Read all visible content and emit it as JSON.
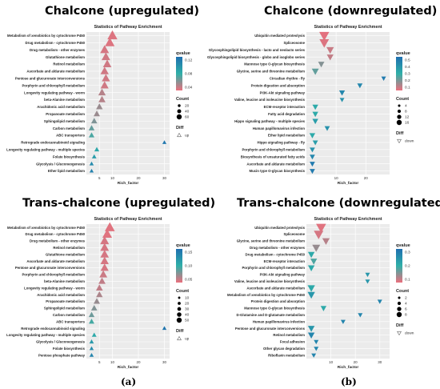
{
  "figure": {
    "caption_a": "(a)",
    "caption_b": "(b)"
  },
  "colors": {
    "high_q": "#1f6fb0",
    "mid_q": "#2fb0a8",
    "low_q": "#ea6f7d"
  },
  "chart_data": [
    {
      "type": "scatter",
      "heading": "Chalcone (upregulated)",
      "title": "Statistics of Pathway Enrichment",
      "xlabel": "Rich_factor",
      "xlim": [
        0,
        32
      ],
      "xticks": [
        5,
        10,
        20,
        30
      ],
      "legend_qvalue": {
        "title": "qvalue",
        "ticks": [
          "0.12",
          "0.08",
          "0.04"
        ],
        "range": [
          0.0,
          0.14
        ]
      },
      "legend_count": {
        "title": "Count",
        "entries": [
          "20",
          "40",
          "60"
        ]
      },
      "legend_diff": {
        "title": "Diff",
        "entries": [
          "up"
        ]
      },
      "categories": [
        "Metabolism of xenobiotics by cytochrome P450",
        "Drug metabolism - cytochrome P450",
        "Drug metabolism - other enzymes",
        "Glutathione metabolism",
        "Retinol metabolism",
        "Ascorbate and aldarate metabolism",
        "Pentose and glucuronate interconversions",
        "Porphyrin and chlorophyll metabolism",
        "Longevity regulating pathway - worm",
        "beta-Alanine metabolism",
        "Arachidonic acid metabolism",
        "Propanoate metabolism",
        "Sphingolipid metabolism",
        "Carbon metabolism",
        "ABC transporters",
        "Retrograde endocannabinoid signaling",
        "Longevity regulating pathway - multiple species",
        "Folate biosynthesis",
        "Glycolysis / Gluconeogenesis",
        "Ether lipid metabolism"
      ],
      "x": [
        10,
        9,
        7,
        7.5,
        8,
        7,
        7.5,
        7,
        6,
        6,
        5,
        4,
        3,
        2,
        2,
        30,
        4,
        3,
        2,
        2
      ],
      "count": [
        62,
        55,
        45,
        42,
        40,
        38,
        36,
        35,
        28,
        24,
        20,
        18,
        16,
        14,
        12,
        4,
        8,
        6,
        5,
        4
      ],
      "qvalue": [
        0.005,
        0.005,
        0.008,
        0.01,
        0.01,
        0.01,
        0.01,
        0.01,
        0.02,
        0.02,
        0.03,
        0.03,
        0.04,
        0.05,
        0.06,
        0.13,
        0.08,
        0.09,
        0.11,
        0.12
      ]
    },
    {
      "type": "scatter",
      "heading": "Chalcone (downregulated)",
      "title": "Statistics of Pathway Enrichment",
      "xlabel": "Rich_factor",
      "xlim": [
        0,
        28
      ],
      "xticks": [
        10,
        20
      ],
      "legend_qvalue": {
        "title": "qvalue",
        "ticks": [
          "0.5",
          "0.4",
          "0.3",
          "0.2",
          "0.1"
        ],
        "range": [
          0.0,
          0.55
        ]
      },
      "legend_count": {
        "title": "Count",
        "entries": [
          "4",
          "8",
          "12",
          "16"
        ]
      },
      "legend_diff": {
        "title": "Diff",
        "entries": [
          "down"
        ]
      },
      "categories": [
        "Ubiquitin mediated proteolysis",
        "Spliceosome",
        "Glycosphingolipid biosynthesis - lacto and neolacto series",
        "Glycosphingolipid biosynthesis - globo and isoglobo series",
        "Mannose type O-glycan biosynthesis",
        "Glycine, serine and threonine metabolism",
        "Circadian rhythm - fly",
        "Protein digestion and absorption",
        "PI3K-Akt signaling pathway",
        "Valine, leucine and isoleucine biosynthesis",
        "ECM-receptor interaction",
        "Fatty acid degradation",
        "Hippo signaling pathway - multiple species",
        "Human papillomavirus infection",
        "Ether lipid metabolism",
        "Hippo signaling pathway - fly",
        "Porphyrin and chlorophyll metabolism",
        "Biosynthesis of unsaturated fatty acids",
        "Ascorbate and aldarate metabolism",
        "Mucin type O-glycan biosynthesis"
      ],
      "x": [
        6,
        6,
        8,
        8,
        5,
        3,
        26,
        18,
        12,
        12,
        3,
        3,
        3,
        7,
        2,
        3,
        2,
        2,
        2,
        2
      ],
      "count": [
        18,
        16,
        8,
        6,
        5,
        7,
        2,
        3,
        4,
        2,
        4,
        4,
        4,
        3,
        4,
        3,
        3,
        3,
        3,
        3
      ],
      "qvalue": [
        0.01,
        0.02,
        0.05,
        0.06,
        0.15,
        0.2,
        0.5,
        0.45,
        0.45,
        0.4,
        0.3,
        0.3,
        0.35,
        0.4,
        0.3,
        0.35,
        0.4,
        0.45,
        0.5,
        0.5
      ]
    },
    {
      "type": "scatter",
      "heading": "Trans-chalcone (upregulated)",
      "title": "Statistics of Pathway Enrichment",
      "xlabel": "Rich_factor",
      "xlim": [
        0,
        32
      ],
      "xticks": [
        5,
        10,
        20,
        30
      ],
      "legend_qvalue": {
        "title": "qvalue",
        "ticks": [
          "0.15",
          "0.10",
          "0.05"
        ],
        "range": [
          0.0,
          0.18
        ]
      },
      "legend_count": {
        "title": "Count",
        "entries": [
          "10",
          "20",
          "30",
          "40",
          "50"
        ]
      },
      "legend_diff": {
        "title": "Diff",
        "entries": [
          "up"
        ]
      },
      "categories": [
        "Metabolism of xenobiotics by cytochrome P450",
        "Drug metabolism - cytochrome P450",
        "Drug metabolism - other enzymes",
        "Retinol metabolism",
        "Glutathione metabolism",
        "Ascorbate and aldarate metabolism",
        "Pentose and glucuronate interconversions",
        "Porphyrin and chlorophyll metabolism",
        "beta-Alanine metabolism",
        "Longevity regulating pathway - worm",
        "Arachidonic acid metabolism",
        "Propanoate metabolism",
        "Sphingolipid metabolism",
        "Carbon metabolism",
        "ABC transporters",
        "Retrograde endocannabinoid signaling",
        "Longevity regulating pathway - multiple species",
        "Glycolysis / Gluconeogenesis",
        "Folate biosynthesis",
        "Pentose phosphate pathway"
      ],
      "x": [
        9,
        8,
        7,
        7,
        7,
        7,
        7,
        6.5,
        6,
        5,
        5,
        4,
        3,
        2,
        2,
        30,
        3,
        2,
        2,
        2
      ],
      "count": [
        55,
        50,
        40,
        38,
        36,
        34,
        32,
        30,
        22,
        20,
        18,
        16,
        14,
        12,
        10,
        4,
        6,
        5,
        4,
        4
      ],
      "qvalue": [
        0.005,
        0.005,
        0.01,
        0.01,
        0.01,
        0.01,
        0.01,
        0.015,
        0.02,
        0.02,
        0.03,
        0.04,
        0.05,
        0.06,
        0.08,
        0.17,
        0.1,
        0.12,
        0.14,
        0.15
      ]
    },
    {
      "type": "scatter",
      "heading": "Trans-chalcone (downregulated)",
      "title": "Statistics of Pathway Enrichment",
      "xlabel": "Rich_factor",
      "xlim": [
        0,
        34
      ],
      "xticks": [
        10,
        20,
        30
      ],
      "legend_qvalue": {
        "title": "qvalue",
        "ticks": [
          "0.3",
          "0.2",
          "0.1"
        ],
        "range": [
          0.0,
          0.36
        ]
      },
      "legend_count": {
        "title": "Count",
        "entries": [
          "2",
          "4",
          "6",
          "8"
        ]
      },
      "legend_diff": {
        "title": "Diff",
        "entries": [
          "down"
        ]
      },
      "categories": [
        "Ubiquitin mediated proteolysis",
        "Spliceosome",
        "Glycine, serine and threonine metabolism",
        "Drug metabolism - other enzymes",
        "Drug metabolism - cytochrome P450",
        "ECM-receptor interaction",
        "Porphyrin and chlorophyll metabolism",
        "PI3K-Akt signaling pathway",
        "Valine, leucine and isoleucine biosynthesis",
        "Ascorbate and aldarate metabolism",
        "Metabolism of xenobiotics by cytochrome P450",
        "Protein digestion and absorption",
        "Mannose type O-glycan biosynthesis",
        "D-Glutamine and D-glutamate metabolism",
        "Human papillomavirus infection",
        "Pentose and glucuronate interconversions",
        "Retinol metabolism",
        "Focal adhesion",
        "Other glycan degradation",
        "Riboflavin metabolism"
      ],
      "x": [
        6,
        5,
        8,
        4,
        2,
        3,
        2,
        25,
        25,
        2,
        2,
        30,
        7,
        22,
        15,
        2,
        2,
        4,
        4,
        3
      ],
      "count": [
        9,
        8,
        4,
        5,
        3,
        3,
        3,
        1,
        1,
        4,
        4,
        1,
        2,
        1,
        1,
        3,
        3,
        1,
        1,
        1
      ],
      "qvalue": [
        0.01,
        0.02,
        0.05,
        0.08,
        0.2,
        0.15,
        0.2,
        0.25,
        0.25,
        0.2,
        0.25,
        0.3,
        0.2,
        0.3,
        0.3,
        0.25,
        0.3,
        0.3,
        0.3,
        0.3
      ]
    }
  ]
}
